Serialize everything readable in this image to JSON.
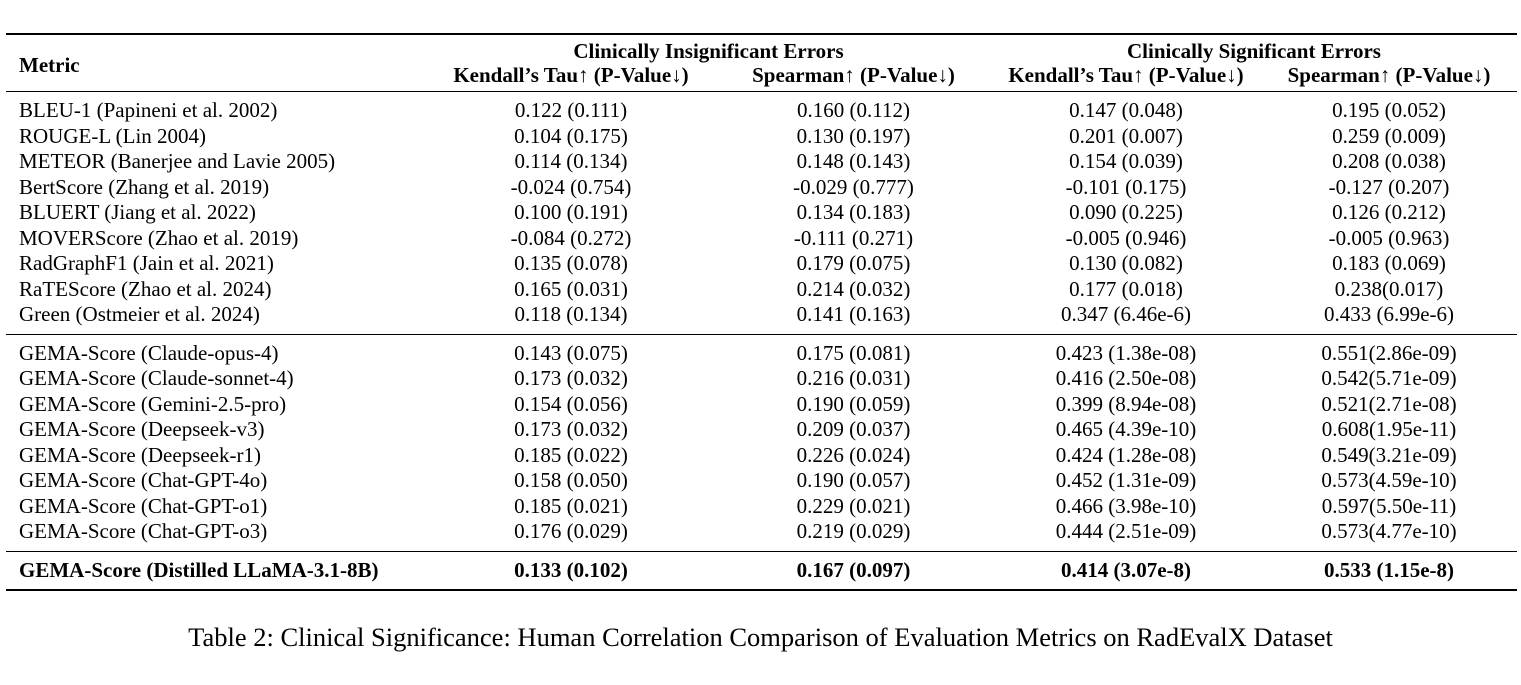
{
  "table": {
    "header": {
      "metric": "Metric",
      "group1": "Clinically Insignificant Errors",
      "group2": "Clinically Significant Errors",
      "sub": [
        "Kendall’s Tau↑ (P-Value↓)",
        "Spearman↑ (P-Value↓)",
        "Kendall’s Tau↑ (P-Value↓)",
        "Spearman↑ (P-Value↓)"
      ]
    },
    "block1": [
      {
        "metric": "BLEU-1 (Papineni et al. 2002)",
        "c1": "0.122 (0.111)",
        "c2": "0.160 (0.112)",
        "c3": "0.147 (0.048)",
        "c4": "0.195 (0.052)"
      },
      {
        "metric": "ROUGE-L (Lin 2004)",
        "c1": "0.104 (0.175)",
        "c2": "0.130 (0.197)",
        "c3": "0.201 (0.007)",
        "c4": "0.259 (0.009)"
      },
      {
        "metric": "METEOR (Banerjee and Lavie 2005)",
        "c1": "0.114 (0.134)",
        "c2": "0.148 (0.143)",
        "c3": "0.154 (0.039)",
        "c4": "0.208 (0.038)"
      },
      {
        "metric": "BertScore (Zhang et al. 2019)",
        "c1": "-0.024 (0.754)",
        "c2": "-0.029 (0.777)",
        "c3": "-0.101 (0.175)",
        "c4": "-0.127 (0.207)"
      },
      {
        "metric": "BLUERT (Jiang et al. 2022)",
        "c1": "0.100 (0.191)",
        "c2": "0.134 (0.183)",
        "c3": "0.090 (0.225)",
        "c4": "0.126 (0.212)"
      },
      {
        "metric": "MOVERScore (Zhao et al. 2019)",
        "c1": "-0.084 (0.272)",
        "c2": "-0.111 (0.271)",
        "c3": "-0.005 (0.946)",
        "c4": "-0.005 (0.963)"
      },
      {
        "metric": "RadGraphF1 (Jain et al. 2021)",
        "c1": "0.135 (0.078)",
        "c2": "0.179 (0.075)",
        "c3": "0.130 (0.082)",
        "c4": "0.183 (0.069)"
      },
      {
        "metric": "RaTEScore (Zhao et al. 2024)",
        "c1": "0.165 (0.031)",
        "c2": "0.214 (0.032)",
        "c3": "0.177 (0.018)",
        "c4": "0.238(0.017)"
      },
      {
        "metric": "Green (Ostmeier et al. 2024)",
        "c1": "0.118 (0.134)",
        "c2": "0.141 (0.163)",
        "c3": "0.347 (6.46e-6)",
        "c4": "0.433 (6.99e-6)"
      }
    ],
    "block2": [
      {
        "metric": "GEMA-Score (Claude-opus-4)",
        "c1": "0.143 (0.075)",
        "c2": "0.175 (0.081)",
        "c3": "0.423 (1.38e-08)",
        "c4": "0.551(2.86e-09)"
      },
      {
        "metric": "GEMA-Score (Claude-sonnet-4)",
        "c1": "0.173 (0.032)",
        "c2": "0.216 (0.031)",
        "c3": "0.416 (2.50e-08)",
        "c4": "0.542(5.71e-09)"
      },
      {
        "metric": "GEMA-Score (Gemini-2.5-pro)",
        "c1": "0.154 (0.056)",
        "c2": "0.190 (0.059)",
        "c3": "0.399 (8.94e-08)",
        "c4": "0.521(2.71e-08)"
      },
      {
        "metric": "GEMA-Score (Deepseek-v3)",
        "c1": "0.173 (0.032)",
        "c2": "0.209 (0.037)",
        "c3": "0.465 (4.39e-10)",
        "c4": "0.608(1.95e-11)"
      },
      {
        "metric": "GEMA-Score (Deepseek-r1)",
        "c1": "0.185 (0.022)",
        "c2": "0.226 (0.024)",
        "c3": "0.424 (1.28e-08)",
        "c4": "0.549(3.21e-09)"
      },
      {
        "metric": "GEMA-Score (Chat-GPT-4o)",
        "c1": "0.158 (0.050)",
        "c2": "0.190 (0.057)",
        "c3": "0.452 (1.31e-09)",
        "c4": "0.573(4.59e-10)"
      },
      {
        "metric": "GEMA-Score (Chat-GPT-o1)",
        "c1": "0.185 (0.021)",
        "c2": "0.229 (0.021)",
        "c3": "0.466 (3.98e-10)",
        "c4": "0.597(5.50e-11)"
      },
      {
        "metric": "GEMA-Score (Chat-GPT-o3)",
        "c1": "0.176 (0.029)",
        "c2": "0.219 (0.029)",
        "c3": "0.444 (2.51e-09)",
        "c4": "0.573(4.77e-10)"
      }
    ],
    "block3": [
      {
        "metric": "GEMA-Score (Distilled LLaMA-3.1-8B)",
        "c1": "0.133 (0.102)",
        "c2": "0.167 (0.097)",
        "c3": "0.414 (3.07e-8)",
        "c4": "0.533 (1.15e-8)"
      }
    ]
  },
  "caption": "Table 2: Clinical Significance: Human Correlation Comparison of Evaluation Metrics on RadEvalX Dataset"
}
